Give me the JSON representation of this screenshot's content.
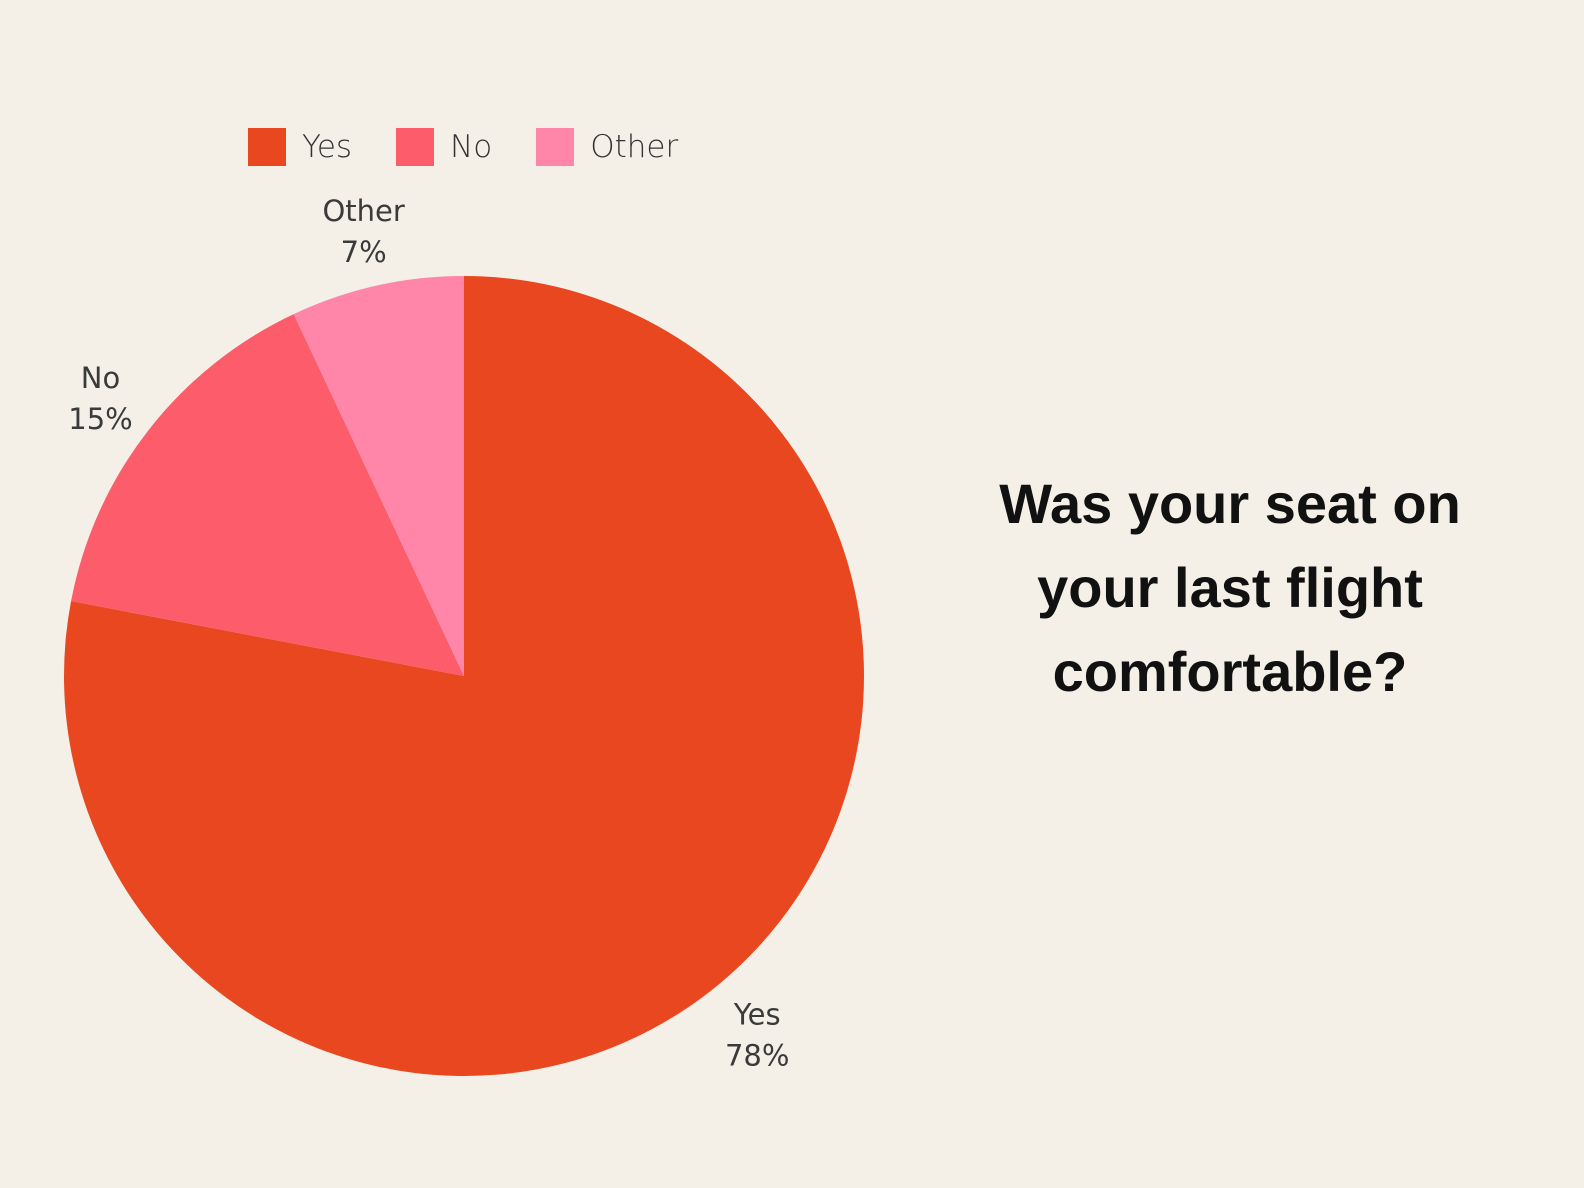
{
  "question": "Was your seat on your last flight comfortable?",
  "colors": {
    "background": "#f4f0e8",
    "yes": "#e8471f",
    "no": "#fd5c6b",
    "other": "#ff86a9"
  },
  "chart_data": {
    "type": "pie",
    "title": "",
    "legend_position": "top-left",
    "slices": [
      {
        "label": "Yes",
        "value": 78,
        "display": "78%",
        "color": "#e8471f"
      },
      {
        "label": "No",
        "value": 15,
        "display": "15%",
        "color": "#fd5c6b"
      },
      {
        "label": "Other",
        "value": 7,
        "display": "7%",
        "color": "#ff86a9"
      }
    ]
  }
}
